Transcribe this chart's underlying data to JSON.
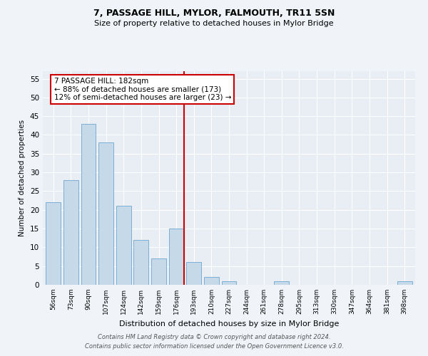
{
  "title1": "7, PASSAGE HILL, MYLOR, FALMOUTH, TR11 5SN",
  "title2": "Size of property relative to detached houses in Mylor Bridge",
  "xlabel": "Distribution of detached houses by size in Mylor Bridge",
  "ylabel": "Number of detached properties",
  "categories": [
    "56sqm",
    "73sqm",
    "90sqm",
    "107sqm",
    "124sqm",
    "142sqm",
    "159sqm",
    "176sqm",
    "193sqm",
    "210sqm",
    "227sqm",
    "244sqm",
    "261sqm",
    "278sqm",
    "295sqm",
    "313sqm",
    "330sqm",
    "347sqm",
    "364sqm",
    "381sqm",
    "398sqm"
  ],
  "values": [
    22,
    28,
    43,
    38,
    21,
    12,
    7,
    15,
    6,
    2,
    1,
    0,
    0,
    1,
    0,
    0,
    0,
    0,
    0,
    0,
    1
  ],
  "bar_color": "#c5d9e8",
  "bar_edge_color": "#7bafd4",
  "vline_color": "#cc0000",
  "annotation_text": "7 PASSAGE HILL: 182sqm\n← 88% of detached houses are smaller (173)\n12% of semi-detached houses are larger (23) →",
  "annotation_box_color": "#ffffff",
  "annotation_box_edge_color": "#cc0000",
  "ylim": [
    0,
    57
  ],
  "yticks": [
    0,
    5,
    10,
    15,
    20,
    25,
    30,
    35,
    40,
    45,
    50,
    55
  ],
  "bg_color": "#e8eef4",
  "grid_color": "#ffffff",
  "footer1": "Contains HM Land Registry data © Crown copyright and database right 2024.",
  "footer2": "Contains public sector information licensed under the Open Government Licence v3.0."
}
